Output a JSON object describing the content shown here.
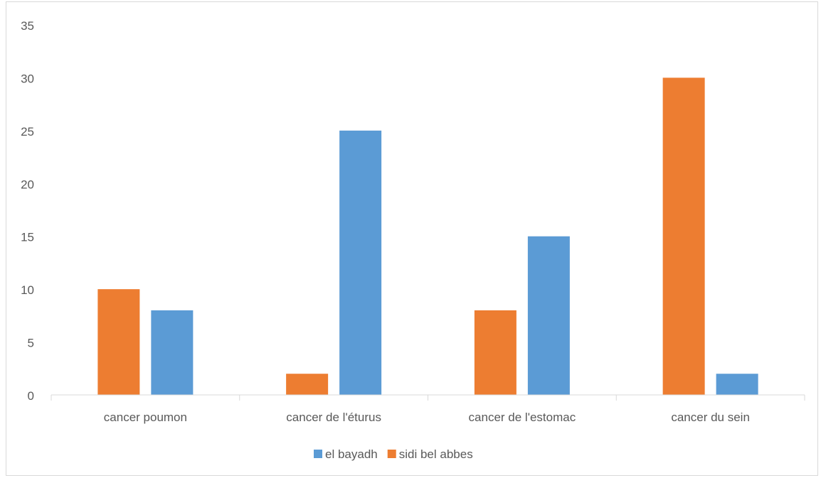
{
  "chart_data": {
    "type": "bar",
    "title": "",
    "xlabel": "",
    "ylabel": "",
    "categories": [
      "cancer poumon",
      "cancer de l'éturus",
      "cancer de l'estomac",
      "cancer du sein"
    ],
    "series": [
      {
        "name": "sidi bel abbes",
        "color": "#ed7d31",
        "values": [
          10,
          2,
          8,
          30
        ]
      },
      {
        "name": "el bayadh",
        "color": "#5b9bd5",
        "values": [
          8,
          25,
          15,
          2
        ]
      }
    ],
    "legend_order": [
      "el bayadh",
      "sidi bel abbes"
    ],
    "ylim": [
      0,
      35
    ],
    "yticks": [
      0,
      5,
      10,
      15,
      20,
      25,
      30,
      35
    ],
    "grid": false,
    "legend_position": "bottom"
  }
}
